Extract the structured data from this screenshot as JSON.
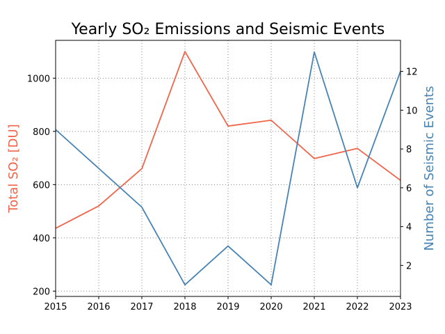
{
  "chart_data": {
    "type": "line",
    "title": "Yearly SO₂ Emissions and Seismic Events",
    "xlabel": "",
    "x": [
      2015,
      2016,
      2017,
      2018,
      2019,
      2020,
      2021,
      2022,
      2023
    ],
    "xlim": [
      2015,
      2023
    ],
    "grid": true,
    "left_axis": {
      "label": "Total SO₂ [DU]",
      "color": "#f0654a",
      "ylim": [
        180,
        1142
      ],
      "ticks": [
        200,
        400,
        600,
        800,
        1000
      ]
    },
    "right_axis": {
      "label": "Number of Seismic Events",
      "color": "#4682b4",
      "ylim": [
        0.4,
        13.6
      ],
      "ticks": [
        2,
        4,
        6,
        8,
        10,
        12
      ]
    },
    "series": [
      {
        "axis": "left",
        "color": "#f0654a",
        "values": [
          436,
          520,
          660,
          1100,
          820,
          842,
          698,
          736,
          616
        ]
      },
      {
        "axis": "right",
        "color": "#4682b4",
        "values": [
          9,
          7,
          5,
          1,
          3,
          1,
          13,
          6,
          12
        ]
      }
    ]
  }
}
